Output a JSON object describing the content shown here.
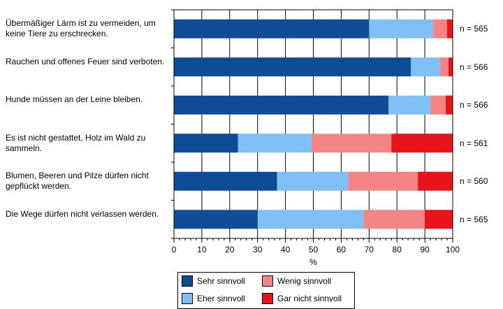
{
  "chart_data": {
    "type": "bar",
    "orientation": "horizontal",
    "stacked": true,
    "categories": [
      "Übermäßiger Lärm ist zu vermeiden, um keine Tiere zu erschrecken.",
      "Rauchen und offenes Feuer sind verboten.",
      "Hunde müssen an der Leine bleiben.",
      "Es ist nicht gestattet, Holz im Wald zu sammeln.",
      "Blumen, Beeren und Pilze dürfen nicht gepflückt werden.",
      "Die Wege dürfen nicht verlassen werden."
    ],
    "n_labels": [
      "n = 565",
      "n = 566",
      "n = 566",
      "n = 561",
      "n = 560",
      "n = 565"
    ],
    "series": [
      {
        "name": "Sehr sinnvoll",
        "color": "#0f4c97",
        "values": [
          70,
          85,
          77,
          23,
          37,
          30
        ]
      },
      {
        "name": "Eher sinnvoll",
        "color": "#7fbff5",
        "values": [
          23,
          10.5,
          15,
          26.5,
          25.5,
          38
        ]
      },
      {
        "name": "Wenig sinnvoll",
        "color": "#f58585",
        "values": [
          5,
          3,
          5.5,
          28.5,
          25,
          22
        ]
      },
      {
        "name": "Gar nicht sinnvoll",
        "color": "#e8141c",
        "values": [
          2,
          1.5,
          2.5,
          22,
          12.5,
          10
        ]
      }
    ],
    "xlabel": "%",
    "xlim": [
      0,
      100
    ],
    "xticks": [
      0,
      10,
      20,
      30,
      40,
      50,
      60,
      70,
      80,
      90,
      100
    ],
    "grid": "vertical",
    "legend_position": "bottom"
  }
}
